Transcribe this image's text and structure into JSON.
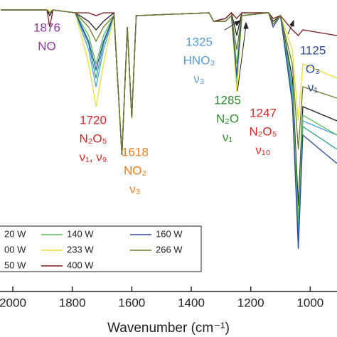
{
  "chart_data": {
    "type": "line",
    "x_label": "Wavenumber (cm⁻¹)",
    "x": [
      2040,
      1885,
      1876,
      1865,
      1790,
      1745,
      1720,
      1695,
      1660,
      1633,
      1615,
      1600,
      1585,
      1340,
      1325,
      1285,
      1265,
      1247,
      1230,
      1140,
      1125,
      1100,
      1060,
      1040,
      1025,
      910
    ],
    "xlim": [
      2043,
      910
    ],
    "xticks": [
      2000,
      1800,
      1600,
      1400,
      1200,
      1000
    ],
    "ylim": [
      0,
      1
    ],
    "series": [
      {
        "name": "20 W",
        "color": "#4aa3df",
        "values": [
          0.99,
          0.99,
          0.98,
          0.99,
          0.98,
          0.85,
          0.72,
          0.85,
          0.97,
          0.48,
          0.93,
          0.61,
          0.97,
          0.98,
          0.95,
          0.95,
          0.97,
          0.72,
          0.97,
          0.98,
          0.94,
          0.97,
          0.7,
          0.2,
          0.6,
          0.55
        ]
      },
      {
        "name": "00 W",
        "color": "#222222",
        "values": [
          0.99,
          0.99,
          0.97,
          0.99,
          0.98,
          0.95,
          0.92,
          0.95,
          0.98,
          0.48,
          0.93,
          0.61,
          0.97,
          0.98,
          0.95,
          0.96,
          0.98,
          0.9,
          0.98,
          0.98,
          0.95,
          0.97,
          0.75,
          0.3,
          0.65,
          0.6
        ]
      },
      {
        "name": "50 W",
        "color": "#2a9d8f",
        "values": [
          0.99,
          0.99,
          0.98,
          0.99,
          0.98,
          0.87,
          0.75,
          0.87,
          0.97,
          0.48,
          0.93,
          0.61,
          0.97,
          0.98,
          0.95,
          0.95,
          0.97,
          0.75,
          0.97,
          0.98,
          0.94,
          0.97,
          0.68,
          0.18,
          0.58,
          0.5
        ]
      },
      {
        "name": "140 W",
        "color": "#5cb85c",
        "values": [
          0.99,
          0.99,
          0.98,
          0.99,
          0.98,
          0.9,
          0.8,
          0.9,
          0.97,
          0.48,
          0.93,
          0.61,
          0.97,
          0.98,
          0.95,
          0.95,
          0.97,
          0.8,
          0.97,
          0.98,
          0.94,
          0.97,
          0.72,
          0.25,
          0.62,
          0.55
        ]
      },
      {
        "name": "233 W",
        "color": "#e8e03a",
        "values": [
          0.99,
          0.99,
          0.99,
          0.99,
          0.98,
          0.8,
          0.65,
          0.8,
          0.97,
          0.48,
          0.93,
          0.61,
          0.97,
          0.98,
          0.95,
          0.95,
          0.97,
          0.7,
          0.97,
          0.98,
          0.94,
          0.97,
          0.85,
          0.6,
          0.8,
          0.75
        ]
      },
      {
        "name": "400 W",
        "color": "#7b1c1c",
        "values": [
          0.99,
          0.99,
          0.93,
          0.99,
          0.98,
          0.98,
          0.97,
          0.98,
          0.98,
          0.48,
          0.93,
          0.61,
          0.97,
          0.98,
          0.95,
          0.96,
          0.98,
          0.96,
          0.98,
          0.98,
          0.96,
          0.97,
          0.92,
          0.9,
          0.92,
          0.9
        ]
      },
      {
        "name": "160 W",
        "color": "#2c4a9a",
        "values": [
          0.99,
          0.99,
          0.98,
          0.99,
          0.98,
          0.88,
          0.78,
          0.88,
          0.97,
          0.48,
          0.93,
          0.61,
          0.97,
          0.98,
          0.95,
          0.95,
          0.97,
          0.76,
          0.97,
          0.98,
          0.93,
          0.97,
          0.66,
          0.15,
          0.55,
          0.45
        ]
      },
      {
        "name": "266 W",
        "color": "#6b7a2a",
        "values": [
          0.99,
          0.99,
          0.98,
          0.99,
          0.98,
          0.93,
          0.88,
          0.93,
          0.97,
          0.48,
          0.93,
          0.61,
          0.97,
          0.98,
          0.95,
          0.95,
          0.97,
          0.85,
          0.97,
          0.98,
          0.94,
          0.97,
          0.8,
          0.5,
          0.72,
          0.68
        ]
      }
    ],
    "annotations": [
      {
        "lines": [
          "1876",
          "NO"
        ],
        "color": "#8e3a9e"
      },
      {
        "lines": [
          "1720",
          "N₂O₅",
          "ν₁, ν₉"
        ],
        "color": "#d62728"
      },
      {
        "lines": [
          "1618",
          "NO₂",
          "ν₃"
        ],
        "color": "#e67e22"
      },
      {
        "lines": [
          "1325",
          "HNO₃",
          "ν₃"
        ],
        "color": "#5b9bd5"
      },
      {
        "lines": [
          "1285",
          "N₂O",
          "ν₁"
        ],
        "color": "#2e8b2e"
      },
      {
        "lines": [
          "1247",
          "N₂O₅",
          "ν₁₀"
        ],
        "color": "#d62728"
      },
      {
        "lines": [
          "1125",
          "O₃",
          "ν₁"
        ],
        "color": "#2c4a9a"
      }
    ]
  }
}
